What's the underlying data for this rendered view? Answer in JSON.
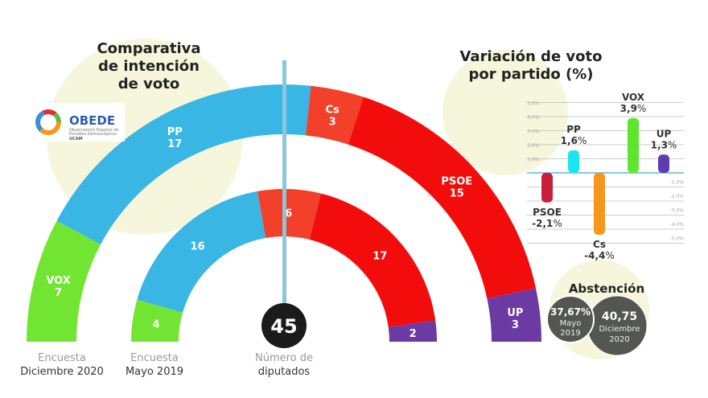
{
  "title_lines": [
    "Comparativa",
    "de intención",
    "de voto"
  ],
  "logo": {
    "name": "OBEDE",
    "sub1": "Observatorio Español de",
    "sub2": "Estudios Demoscópicos",
    "sub3": "UCAM"
  },
  "center_label": {
    "value": "45",
    "line1": "Número de",
    "line2": "diputados"
  },
  "colors": {
    "VOX": "#72e532",
    "PP": "#3ab6e4",
    "Cs": "#f2402b",
    "PSOE": "#f20c0c",
    "UP": "#6b3aa2",
    "bg_circle": "#f5f6dc",
    "center_line": "#8cc6dc"
  },
  "chart_data": [
    {
      "type": "semicircle-parliament",
      "rings": [
        {
          "label_line1": "Encuesta",
          "label_line2": "Diciembre 2020",
          "seats": [
            {
              "party": "VOX",
              "value": 7
            },
            {
              "party": "PP",
              "value": 17
            },
            {
              "party": "Cs",
              "value": 3
            },
            {
              "party": "PSOE",
              "value": 15
            },
            {
              "party": "UP",
              "value": 3
            }
          ]
        },
        {
          "label_line1": "Encuesta",
          "label_line2": "Mayo 2019",
          "seats": [
            {
              "party": "VOX",
              "value": 4
            },
            {
              "party": "PP",
              "value": 16
            },
            {
              "party": "Cs",
              "value": 6
            },
            {
              "party": "PSOE",
              "value": 17
            },
            {
              "party": "UP",
              "value": 2
            }
          ]
        }
      ]
    },
    {
      "type": "bar",
      "title_lines": [
        "Variación de voto",
        "por partido (%)"
      ],
      "categories": [
        "PSOE",
        "PP",
        "Cs",
        "VOX",
        "UP"
      ],
      "values": [
        -2.1,
        1.6,
        -4.4,
        3.9,
        1.3
      ],
      "value_labels": [
        "-2,1",
        "1,6",
        "-4,4",
        "3,9",
        "1,3"
      ],
      "unit": "%",
      "bar_colors": [
        "#c81f3a",
        "#19e6f0",
        "#f7961e",
        "#5ce62e",
        "#5b3fb0"
      ],
      "ylim": [
        -5,
        5
      ],
      "yticks_pos": [
        "5,0%",
        "4,0%",
        "3,0%",
        "2,0%",
        "1,0%"
      ],
      "yticks_neg": [
        "-1,0%",
        "-2,0%",
        "-3,0%",
        "-4,0%",
        "-5,0%"
      ],
      "grid": true
    }
  ],
  "abstention": {
    "title": "Abstención",
    "items": [
      {
        "value": "37,67%",
        "line1": "Mayo",
        "line2": "2019"
      },
      {
        "value": "40,75",
        "line1": "Diciembre",
        "line2": "2020"
      }
    ]
  }
}
